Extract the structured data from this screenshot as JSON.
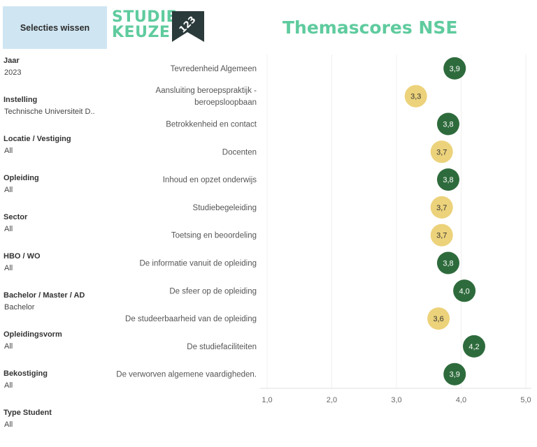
{
  "clear_button": "Selecties wissen",
  "logo": {
    "line1": "STUDIE",
    "line2": "KEUZE",
    "badge": "123"
  },
  "title": "Themascores NSE",
  "filters": [
    {
      "label": "Jaar",
      "value": "2023"
    },
    {
      "label": "Instelling",
      "value": "Technische Universiteit D.."
    },
    {
      "label": "Locatie / Vestiging",
      "value": "All"
    },
    {
      "label": "Opleiding",
      "value": "All"
    },
    {
      "label": "Sector",
      "value": "All"
    },
    {
      "label": "HBO / WO",
      "value": "All"
    },
    {
      "label": "Bachelor / Master / AD",
      "value": "Bachelor"
    },
    {
      "label": "Opleidingsvorm",
      "value": "All"
    },
    {
      "label": "Bekostiging",
      "value": "All"
    },
    {
      "label": "Type Student",
      "value": "All"
    }
  ],
  "colors": {
    "brand": "#5fcb9e",
    "high": "#2e6b3c",
    "low": "#ecd27a",
    "button_bg": "#cfe6f2"
  },
  "chart_data": {
    "type": "scatter",
    "title": "Themascores NSE",
    "categories": [
      [
        "Tevredenheid Algemeen"
      ],
      [
        "Aansluiting beroepspraktijk -",
        "beroepsloopbaan"
      ],
      [
        "Betrokkenheid en contact"
      ],
      [
        "Docenten"
      ],
      [
        "Inhoud en opzet onderwijs"
      ],
      [
        "Studiebegeleiding"
      ],
      [
        "Toetsing en beoordeling"
      ],
      [
        "De informatie vanuit de opleiding"
      ],
      [
        "De sfeer op de opleiding"
      ],
      [
        "De studeerbaarheid van de opleiding"
      ],
      [
        "De studiefaciliteiten"
      ],
      [
        "De verworven algemene vaardigheden."
      ]
    ],
    "values": [
      3.9,
      3.3,
      3.8,
      3.7,
      3.8,
      3.7,
      3.7,
      3.8,
      4.05,
      3.65,
      4.2,
      3.9
    ],
    "value_labels": [
      "3,9",
      "3,3",
      "3,8",
      "3,7",
      "3,8",
      "3,7",
      "3,7",
      "3,8",
      "4,0",
      "3,6",
      "4,2",
      "3,9"
    ],
    "highlight": [
      true,
      false,
      true,
      false,
      true,
      false,
      false,
      true,
      true,
      false,
      true,
      true
    ],
    "xlim": [
      1.0,
      5.0
    ],
    "xticks": [
      1.0,
      2.0,
      3.0,
      4.0,
      5.0
    ],
    "xtick_labels": [
      "1,0",
      "2,0",
      "3,0",
      "4,0",
      "5,0"
    ],
    "grid": true
  }
}
